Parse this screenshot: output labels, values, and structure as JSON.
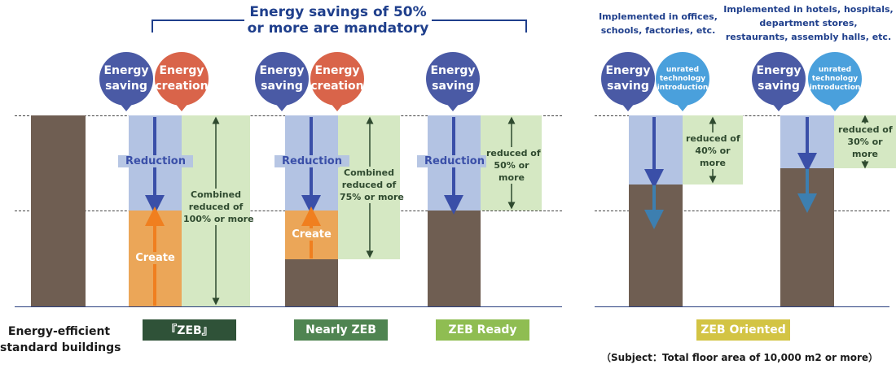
{
  "header": {
    "mandatory_line1": "Energy savings of 50%",
    "mandatory_line2": "or more are mandatory",
    "offices_line1": "Implemented in offices,",
    "offices_line2": "schools, factories, etc.",
    "hotels_line1": "Implemented in hotels, hospitals,",
    "hotels_line2": "department stores,",
    "hotels_line3": "restaurants, assembly halls, etc."
  },
  "circles": {
    "saving": "Energy\nsaving",
    "creation": "Energy\ncreation",
    "unrated": "unrated\ntechnology\nintroduction"
  },
  "bars": {
    "reduction": "Reduction",
    "create": "Create",
    "combined_100": "Combined\nreduced of\n100% or more",
    "combined_75": "Combined\nreduced of\n75% or more",
    "reduced_50": "reduced of\n50% or\nmore",
    "reduced_40": "reduced of\n40% or\nmore",
    "reduced_30": "reduced of\n30% or\nmore"
  },
  "categories": {
    "standard": "Energy-efficient\nstandard buildings",
    "zeb": "『ZEB』",
    "nearly": "Nearly ZEB",
    "ready": "ZEB Ready",
    "oriented": "ZEB Oriented"
  },
  "footnote": "（Subject：Total floor area of 10,000 m2 or more）",
  "colors": {
    "navy": "#1f3f8c",
    "brown": "#6f5e52",
    "saving_circle": "#4a5aa5",
    "creation_circle": "#d9644a",
    "unrated_circle": "#4aa0dc",
    "reduction_fill": "#b3c3e3",
    "create_fill": "#eba658",
    "green_fill": "#d5e8c3",
    "zeb_label": "#2f5238",
    "nearly_label": "#4f8451",
    "ready_label": "#8fbd52",
    "oriented_label": "#d3c444"
  }
}
